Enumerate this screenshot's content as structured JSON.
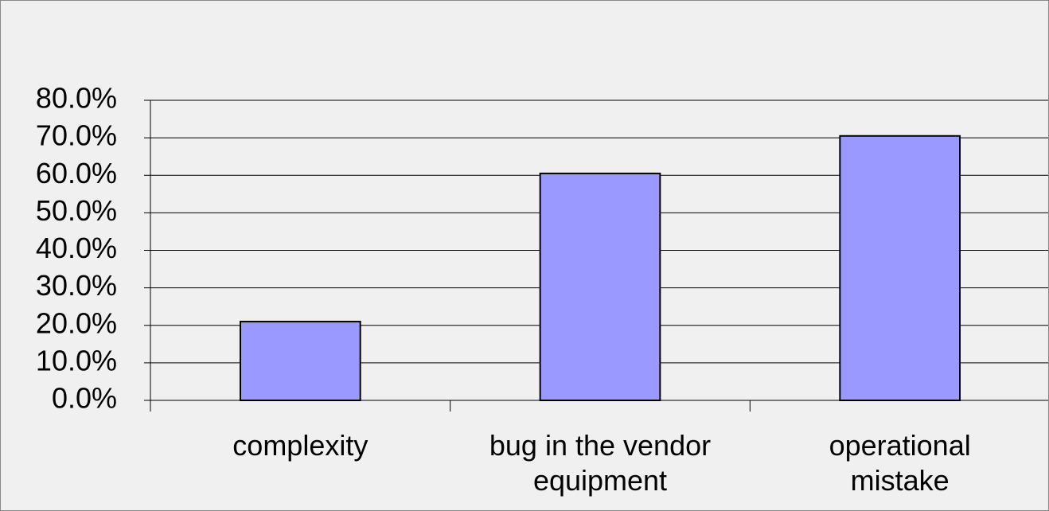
{
  "chart_data": {
    "type": "bar",
    "categories": [
      "complexity",
      "bug in the vendor\nequipment",
      "operational\nmistake"
    ],
    "values": [
      21,
      60.5,
      70.5
    ],
    "color": "#9999ff",
    "ylim": [
      0,
      80
    ],
    "yticks": [
      {
        "value": 0,
        "label": "0.0%"
      },
      {
        "value": 10,
        "label": "10.0%"
      },
      {
        "value": 20,
        "label": "20.0%"
      },
      {
        "value": 30,
        "label": "30.0%"
      },
      {
        "value": 40,
        "label": "40.0%"
      },
      {
        "value": 50,
        "label": "50.0%"
      },
      {
        "value": 60,
        "label": "60.0%"
      },
      {
        "value": 70,
        "label": "70.0%"
      },
      {
        "value": 80,
        "label": "80.0%"
      }
    ],
    "grid": true
  }
}
